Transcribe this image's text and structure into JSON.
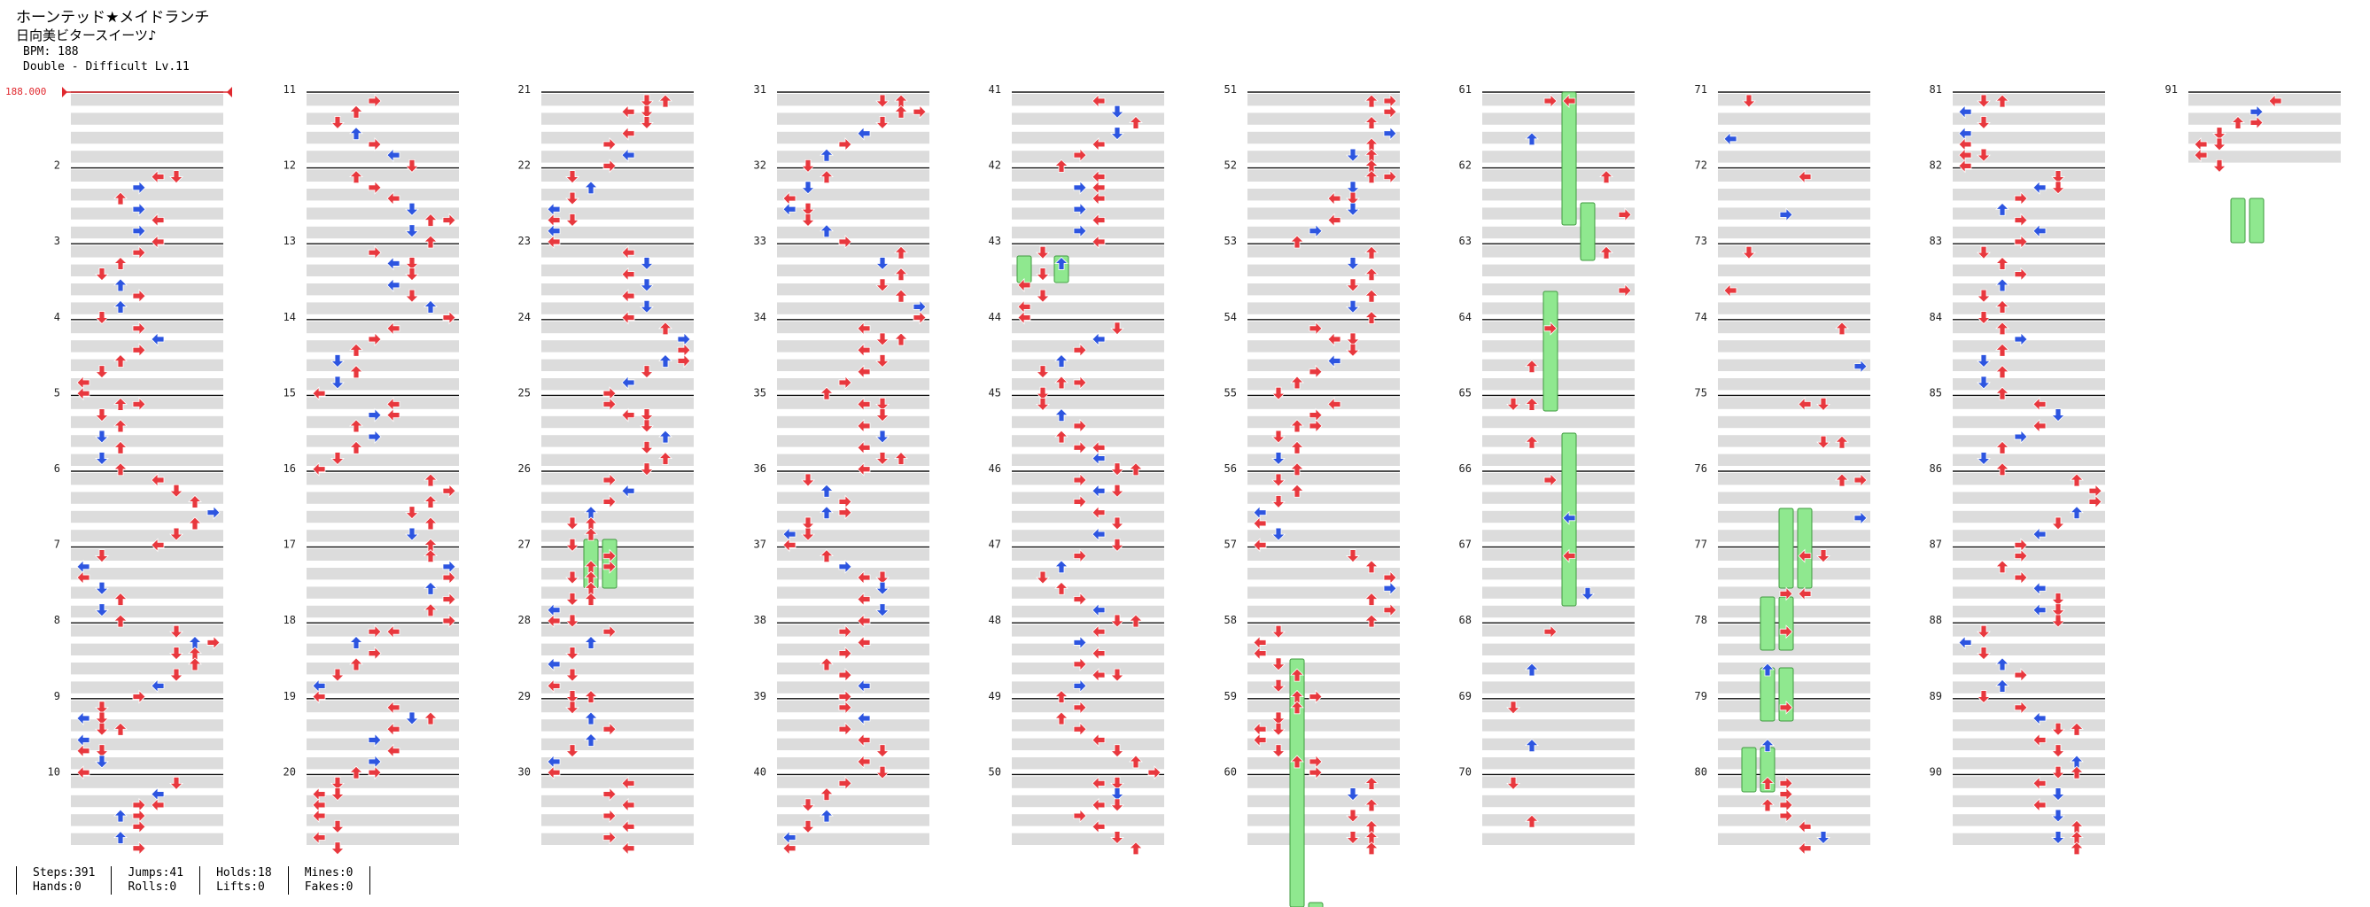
{
  "header": {
    "title": "ホーンテッド★メイドランチ",
    "artist": "日向美ビタースイーツ♪",
    "bpm_line": "BPM: 188",
    "difficulty_line": "Double - Difficult Lv.11"
  },
  "bpm_marker": "188.000",
  "measure_numbers": [
    "2",
    "3",
    "4",
    "5",
    "6",
    "7",
    "8",
    "9",
    "10",
    "11",
    "12",
    "13",
    "14",
    "15",
    "16",
    "17",
    "18",
    "19",
    "20",
    "21",
    "22",
    "23",
    "24",
    "25",
    "26",
    "27",
    "28",
    "29",
    "30",
    "31",
    "32",
    "33",
    "34",
    "35",
    "36",
    "37",
    "38",
    "39",
    "40",
    "41",
    "42",
    "43",
    "44",
    "45",
    "46",
    "47",
    "48",
    "49",
    "50",
    "51",
    "52",
    "53",
    "54",
    "55",
    "56",
    "57",
    "58",
    "59",
    "60",
    "61",
    "62",
    "63",
    "64",
    "65",
    "66",
    "67",
    "68",
    "69",
    "70",
    "71",
    "72",
    "73",
    "74",
    "75",
    "76",
    "77",
    "78",
    "79",
    "80",
    "81",
    "82",
    "83",
    "84",
    "85",
    "86",
    "87",
    "88",
    "89",
    "90",
    "91"
  ],
  "stats": [
    {
      "a": "Steps:391",
      "b": "Hands:0"
    },
    {
      "a": "Jumps:41",
      "b": "Rolls:0"
    },
    {
      "a": "Holds:18",
      "b": "Lifts:0"
    },
    {
      "a": "Mines:0",
      "b": "Fakes:0"
    }
  ],
  "colors": {
    "quarter": "#e8383e",
    "eighth": "#2d55e0",
    "hold": "#8fe88f",
    "hold_border": "#3f9a3f",
    "stripe": "#dcdcdc"
  }
}
